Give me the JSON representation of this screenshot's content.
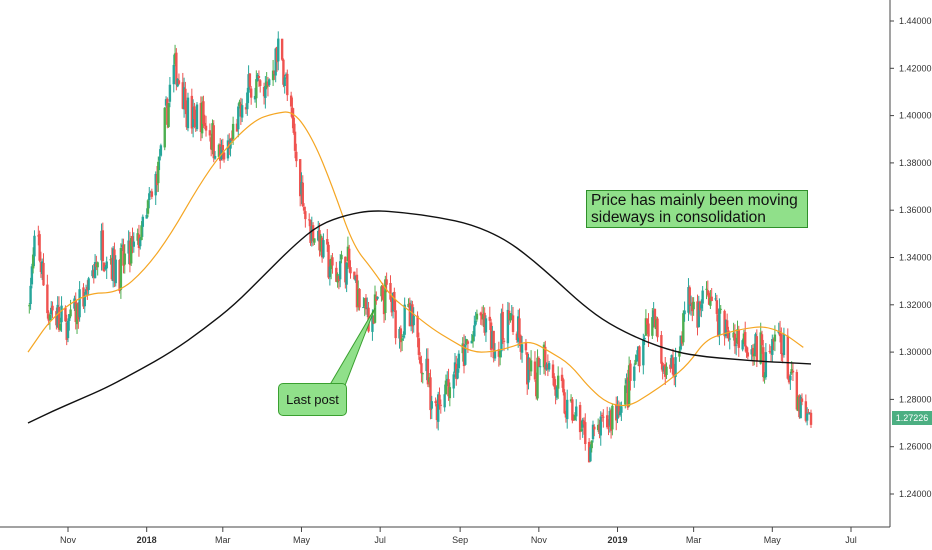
{
  "chart_data": {
    "type": "candlestick",
    "title": "",
    "xlabel": "",
    "ylabel": "",
    "x_range": [
      "2017-10-01",
      "2019-07-31"
    ],
    "ylim": [
      1.23,
      1.445
    ],
    "grid": false,
    "y_ticks": [
      "1.24000",
      "1.26000",
      "1.28000",
      "1.30000",
      "1.32000",
      "1.34000",
      "1.36000",
      "1.38000",
      "1.40000",
      "1.42000",
      "1.44000"
    ],
    "x_ticks": [
      {
        "date": "2017-11-01",
        "label": "Nov",
        "bold": false
      },
      {
        "date": "2018-01-01",
        "label": "2018",
        "bold": true
      },
      {
        "date": "2018-03-01",
        "label": "Mar",
        "bold": false
      },
      {
        "date": "2018-05-01",
        "label": "May",
        "bold": false
      },
      {
        "date": "2018-07-01",
        "label": "Jul",
        "bold": false
      },
      {
        "date": "2018-09-01",
        "label": "Sep",
        "bold": false
      },
      {
        "date": "2018-11-01",
        "label": "Nov",
        "bold": false
      },
      {
        "date": "2019-01-01",
        "label": "2019",
        "bold": true
      },
      {
        "date": "2019-03-01",
        "label": "Mar",
        "bold": false
      },
      {
        "date": "2019-05-01",
        "label": "May",
        "bold": false
      },
      {
        "date": "2019-07-01",
        "label": "Jul",
        "bold": false
      }
    ],
    "price_path": [
      [
        "2017-10-01",
        1.32
      ],
      [
        "2017-10-08",
        1.35
      ],
      [
        "2017-10-15",
        1.32
      ],
      [
        "2017-10-22",
        1.315
      ],
      [
        "2017-10-29",
        1.31
      ],
      [
        "2017-11-05",
        1.315
      ],
      [
        "2017-11-12",
        1.32
      ],
      [
        "2017-11-19",
        1.33
      ],
      [
        "2017-11-26",
        1.345
      ],
      [
        "2017-12-03",
        1.34
      ],
      [
        "2017-12-10",
        1.335
      ],
      [
        "2017-12-17",
        1.34
      ],
      [
        "2017-12-24",
        1.345
      ],
      [
        "2017-12-31",
        1.355
      ],
      [
        "2018-01-07",
        1.37
      ],
      [
        "2018-01-14",
        1.39
      ],
      [
        "2018-01-21",
        1.42
      ],
      [
        "2018-01-28",
        1.415
      ],
      [
        "2018-02-04",
        1.395
      ],
      [
        "2018-02-11",
        1.4
      ],
      [
        "2018-02-18",
        1.395
      ],
      [
        "2018-02-25",
        1.385
      ],
      [
        "2018-03-04",
        1.38
      ],
      [
        "2018-03-11",
        1.395
      ],
      [
        "2018-03-18",
        1.405
      ],
      [
        "2018-03-25",
        1.415
      ],
      [
        "2018-04-01",
        1.405
      ],
      [
        "2018-04-08",
        1.42
      ],
      [
        "2018-04-15",
        1.43
      ],
      [
        "2018-04-22",
        1.4
      ],
      [
        "2018-04-29",
        1.375
      ],
      [
        "2018-05-06",
        1.355
      ],
      [
        "2018-05-13",
        1.35
      ],
      [
        "2018-05-20",
        1.34
      ],
      [
        "2018-05-27",
        1.33
      ],
      [
        "2018-06-03",
        1.34
      ],
      [
        "2018-06-10",
        1.33
      ],
      [
        "2018-06-17",
        1.32
      ],
      [
        "2018-06-24",
        1.315
      ],
      [
        "2018-07-01",
        1.32
      ],
      [
        "2018-07-08",
        1.325
      ],
      [
        "2018-07-15",
        1.31
      ],
      [
        "2018-07-22",
        1.315
      ],
      [
        "2018-07-29",
        1.305
      ],
      [
        "2018-08-05",
        1.295
      ],
      [
        "2018-08-12",
        1.275
      ],
      [
        "2018-08-19",
        1.285
      ],
      [
        "2018-08-26",
        1.29
      ],
      [
        "2018-09-02",
        1.295
      ],
      [
        "2018-09-09",
        1.305
      ],
      [
        "2018-09-16",
        1.315
      ],
      [
        "2018-09-23",
        1.31
      ],
      [
        "2018-09-30",
        1.3
      ],
      [
        "2018-10-07",
        1.315
      ],
      [
        "2018-10-14",
        1.31
      ],
      [
        "2018-10-21",
        1.295
      ],
      [
        "2018-10-28",
        1.285
      ],
      [
        "2018-11-04",
        1.305
      ],
      [
        "2018-11-11",
        1.29
      ],
      [
        "2018-11-18",
        1.28
      ],
      [
        "2018-11-25",
        1.275
      ],
      [
        "2018-12-02",
        1.27
      ],
      [
        "2018-12-09",
        1.26
      ],
      [
        "2018-12-16",
        1.265
      ],
      [
        "2018-12-23",
        1.27
      ],
      [
        "2018-12-30",
        1.275
      ],
      [
        "2019-01-06",
        1.28
      ],
      [
        "2019-01-13",
        1.29
      ],
      [
        "2019-01-20",
        1.305
      ],
      [
        "2019-01-27",
        1.315
      ],
      [
        "2019-02-03",
        1.3
      ],
      [
        "2019-02-10",
        1.29
      ],
      [
        "2019-02-17",
        1.3
      ],
      [
        "2019-02-24",
        1.325
      ],
      [
        "2019-03-03",
        1.315
      ],
      [
        "2019-03-10",
        1.325
      ],
      [
        "2019-03-17",
        1.32
      ],
      [
        "2019-03-24",
        1.31
      ],
      [
        "2019-03-31",
        1.305
      ],
      [
        "2019-04-07",
        1.308
      ],
      [
        "2019-04-14",
        1.305
      ],
      [
        "2019-04-21",
        1.3
      ],
      [
        "2019-04-28",
        1.295
      ],
      [
        "2019-05-05",
        1.31
      ],
      [
        "2019-05-12",
        1.295
      ],
      [
        "2019-05-19",
        1.28
      ],
      [
        "2019-05-26",
        1.27
      ],
      [
        "2019-05-31",
        1.2723
      ]
    ],
    "series": [
      {
        "type": "moving-average",
        "color": "#f5a623",
        "points": [
          [
            "2017-10-01",
            1.3
          ],
          [
            "2017-10-20",
            1.315
          ],
          [
            "2017-11-15",
            1.325
          ],
          [
            "2017-12-10",
            1.325
          ],
          [
            "2017-12-31",
            1.335
          ],
          [
            "2018-01-20",
            1.35
          ],
          [
            "2018-02-10",
            1.37
          ],
          [
            "2018-03-01",
            1.385
          ],
          [
            "2018-03-25",
            1.398
          ],
          [
            "2018-04-10",
            1.401
          ],
          [
            "2018-04-25",
            1.402
          ],
          [
            "2018-05-10",
            1.39
          ],
          [
            "2018-05-25",
            1.37
          ],
          [
            "2018-06-10",
            1.345
          ],
          [
            "2018-06-25",
            1.335
          ],
          [
            "2018-07-10",
            1.323
          ],
          [
            "2018-07-25",
            1.317
          ],
          [
            "2018-08-10",
            1.31
          ],
          [
            "2018-08-25",
            1.305
          ],
          [
            "2018-09-10",
            1.3
          ],
          [
            "2018-09-25",
            1.3
          ],
          [
            "2018-10-10",
            1.302
          ],
          [
            "2018-10-25",
            1.305
          ],
          [
            "2018-11-10",
            1.3
          ],
          [
            "2018-11-25",
            1.295
          ],
          [
            "2018-12-10",
            1.285
          ],
          [
            "2018-12-25",
            1.278
          ],
          [
            "2019-01-10",
            1.277
          ],
          [
            "2019-01-25",
            1.282
          ],
          [
            "2019-02-10",
            1.288
          ],
          [
            "2019-02-25",
            1.295
          ],
          [
            "2019-03-10",
            1.305
          ],
          [
            "2019-03-25",
            1.308
          ],
          [
            "2019-04-10",
            1.31
          ],
          [
            "2019-04-25",
            1.311
          ],
          [
            "2019-05-10",
            1.308
          ],
          [
            "2019-05-25",
            1.302
          ]
        ]
      },
      {
        "type": "moving-average",
        "color": "#111111",
        "points": [
          [
            "2017-10-01",
            1.27
          ],
          [
            "2017-10-20",
            1.275
          ],
          [
            "2017-11-10",
            1.28
          ],
          [
            "2017-12-01",
            1.285
          ],
          [
            "2017-12-25",
            1.292
          ],
          [
            "2018-01-20",
            1.3
          ],
          [
            "2018-02-15",
            1.31
          ],
          [
            "2018-03-10",
            1.32
          ],
          [
            "2018-04-01",
            1.332
          ],
          [
            "2018-04-25",
            1.345
          ],
          [
            "2018-05-15",
            1.354
          ],
          [
            "2018-06-05",
            1.358
          ],
          [
            "2018-06-25",
            1.36
          ],
          [
            "2018-07-20",
            1.359
          ],
          [
            "2018-08-15",
            1.357
          ],
          [
            "2018-09-10",
            1.354
          ],
          [
            "2018-10-05",
            1.348
          ],
          [
            "2018-10-25",
            1.34
          ],
          [
            "2018-11-15",
            1.33
          ],
          [
            "2018-12-05",
            1.32
          ],
          [
            "2018-12-25",
            1.312
          ],
          [
            "2019-01-20",
            1.305
          ],
          [
            "2019-02-15",
            1.3
          ],
          [
            "2019-03-10",
            1.298
          ],
          [
            "2019-04-01",
            1.297
          ],
          [
            "2019-04-25",
            1.296
          ],
          [
            "2019-05-31",
            1.295
          ]
        ]
      }
    ],
    "last_price": "1.27226",
    "annotations": [
      {
        "text": "Price has mainly been moving sideways in consolidation",
        "lines": [
          "Price has mainly been moving",
          "sideways in consolidation"
        ]
      },
      {
        "text": "Last post"
      }
    ],
    "colors": {
      "up": "#26a69a",
      "up_alt": "#4caf50",
      "down": "#ef5350",
      "ma_fast": "#f5a623",
      "ma_slow": "#111111",
      "note_fill": "#90e08a",
      "price_tag": "#4caf82"
    }
  }
}
